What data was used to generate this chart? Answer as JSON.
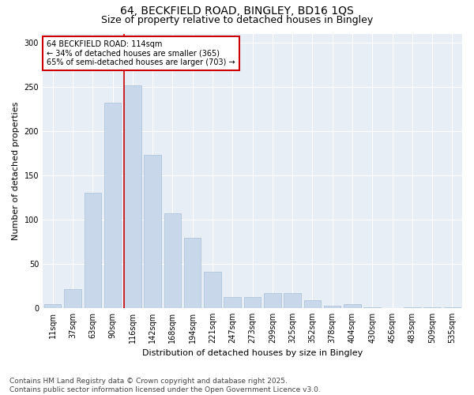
{
  "title_line1": "64, BECKFIELD ROAD, BINGLEY, BD16 1QS",
  "title_line2": "Size of property relative to detached houses in Bingley",
  "xlabel": "Distribution of detached houses by size in Bingley",
  "ylabel": "Number of detached properties",
  "categories": [
    "11sqm",
    "37sqm",
    "63sqm",
    "90sqm",
    "116sqm",
    "142sqm",
    "168sqm",
    "194sqm",
    "221sqm",
    "247sqm",
    "273sqm",
    "299sqm",
    "325sqm",
    "352sqm",
    "378sqm",
    "404sqm",
    "430sqm",
    "456sqm",
    "483sqm",
    "509sqm",
    "535sqm"
  ],
  "values": [
    4,
    21,
    130,
    232,
    252,
    173,
    107,
    79,
    41,
    12,
    12,
    17,
    17,
    9,
    3,
    4,
    1,
    0,
    1,
    1,
    1
  ],
  "bar_color": "#c8d8ea",
  "bar_edge_color": "#a8c0d6",
  "vline_color": "#cc0000",
  "vline_x_index": 4,
  "annotation_line1": "64 BECKFIELD ROAD: 114sqm",
  "annotation_line2": "← 34% of detached houses are smaller (365)",
  "annotation_line3": "65% of semi-detached houses are larger (703) →",
  "annotation_box_color": "white",
  "annotation_box_edge": "#cc0000",
  "ylim": [
    0,
    310
  ],
  "yticks": [
    0,
    50,
    100,
    150,
    200,
    250,
    300
  ],
  "footnote": "Contains HM Land Registry data © Crown copyright and database right 2025.\nContains public sector information licensed under the Open Government Licence v3.0.",
  "bg_color": "#ffffff",
  "plot_bg_color": "#e8eef5",
  "grid_color": "#ffffff",
  "title_fontsize": 10,
  "subtitle_fontsize": 9,
  "axis_label_fontsize": 8,
  "tick_fontsize": 7,
  "footnote_fontsize": 6.5,
  "annotation_fontsize": 7
}
